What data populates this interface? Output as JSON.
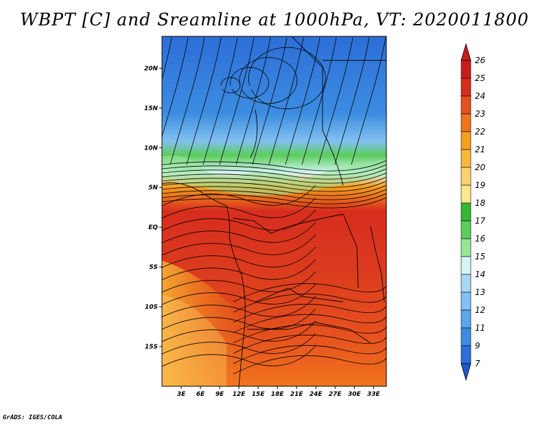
{
  "chart_data": {
    "type": "heatmap",
    "title": "WBPT [C] and Sreamline at 1000hPa, VT: 2020011800",
    "variable": "WBPT",
    "units": "C",
    "level": "1000hPa",
    "valid_time": "2020011800",
    "overlay": "streamlines",
    "lon_range": [
      0,
      35
    ],
    "lat_range": [
      -20,
      24
    ],
    "x_ticks": [
      "3E",
      "6E",
      "9E",
      "12E",
      "15E",
      "18E",
      "21E",
      "24E",
      "27E",
      "30E",
      "33E"
    ],
    "x_tick_values": [
      3,
      6,
      9,
      12,
      15,
      18,
      21,
      24,
      27,
      30,
      33
    ],
    "y_ticks": [
      "20N",
      "15N",
      "10N",
      "5N",
      "EQ",
      "5S",
      "10S",
      "15S"
    ],
    "y_tick_values": [
      20,
      15,
      10,
      5,
      0,
      -5,
      -10,
      -15
    ],
    "colorbar": {
      "levels": [
        "26",
        "25",
        "24",
        "23",
        "22",
        "21",
        "20",
        "19",
        "18",
        "17",
        "16",
        "15",
        "14",
        "13",
        "12",
        "11",
        "9",
        "7"
      ],
      "colors": [
        "#c81e1e",
        "#d72d1e",
        "#e6501e",
        "#f0731e",
        "#f5a01e",
        "#fab93c",
        "#fcd26e",
        "#fde68c",
        "#33b833",
        "#5ccc5c",
        "#99e699",
        "#d4f5f5",
        "#a8d8f5",
        "#82c0f0",
        "#5ca6ec",
        "#3c8ce0",
        "#2d6ed7",
        "#1e5ac8"
      ]
    }
  },
  "credit": "GrADS: IGES/COLA"
}
